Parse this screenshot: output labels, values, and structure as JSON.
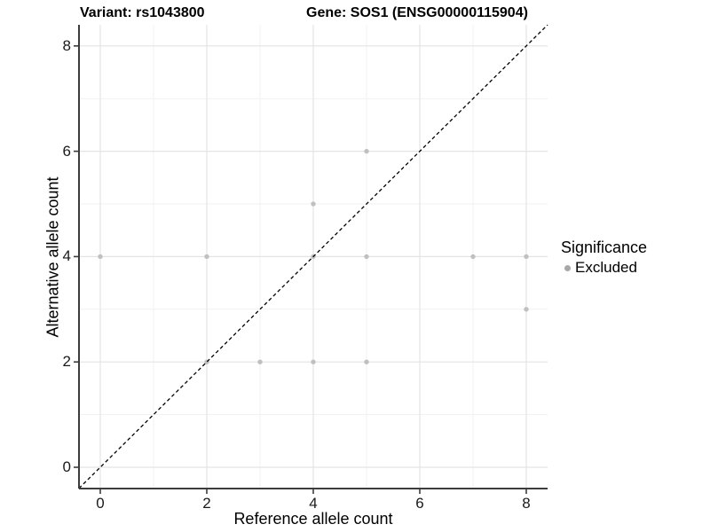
{
  "titles": {
    "left": "Variant: rs1043800",
    "right": "Gene: SOS1 (ENSG00000115904)"
  },
  "legend": {
    "title": "Significance",
    "items": [
      {
        "label": "Excluded",
        "marker": "circle-icon",
        "color": "#a8a8a8"
      }
    ]
  },
  "chart_data": {
    "type": "scatter",
    "xlabel": "Reference allele count",
    "ylabel": "Alternative allele count",
    "xlim": [
      -0.4,
      8.4
    ],
    "ylim": [
      -0.4,
      8.4
    ],
    "x_ticks": [
      0,
      2,
      4,
      6,
      8
    ],
    "y_ticks": [
      0,
      2,
      4,
      6,
      8
    ],
    "minor_gridlines_x": [
      1,
      3,
      5,
      7
    ],
    "minor_gridlines_y": [
      1,
      3,
      5,
      7
    ],
    "grid": true,
    "legend_position": "right",
    "series": [
      {
        "name": "Excluded",
        "color": "#c0c0c0",
        "points": [
          [
            0,
            4
          ],
          [
            2,
            2
          ],
          [
            2,
            4
          ],
          [
            3,
            2
          ],
          [
            4,
            2
          ],
          [
            4,
            4
          ],
          [
            4,
            5
          ],
          [
            5,
            2
          ],
          [
            5,
            4
          ],
          [
            5,
            6
          ],
          [
            7,
            4
          ],
          [
            8,
            3
          ],
          [
            8,
            4
          ]
        ]
      }
    ],
    "reference_line": {
      "slope": 1,
      "intercept": 0,
      "style": "dashed",
      "color": "#000000"
    }
  },
  "colors": {
    "background": "#ffffff",
    "major_grid": "#e4e4e4",
    "minor_grid": "#f1f1f1",
    "axis_line": "#3c3c3c",
    "tick_text": "#1a1a1a"
  }
}
